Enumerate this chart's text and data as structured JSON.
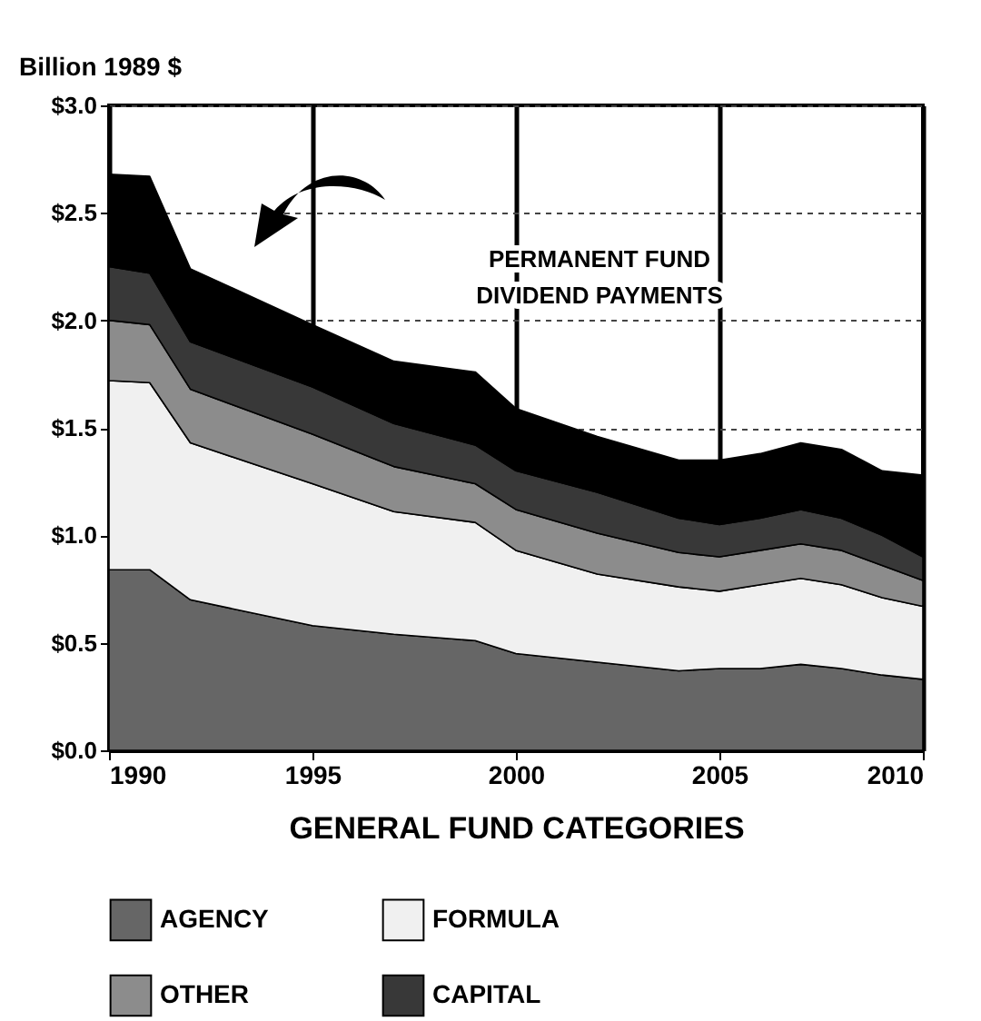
{
  "chart_data": {
    "type": "area",
    "stacked": true,
    "xlabel": "GENERAL FUND CATEGORIES",
    "ylabel": "Billion 1989 $",
    "x": [
      1990,
      1991,
      1992,
      1995,
      1997,
      1999,
      2000,
      2002,
      2004,
      2005,
      2006,
      2007,
      2008,
      2009,
      2010
    ],
    "series": [
      {
        "name": "AGENCY",
        "color": "#666666",
        "values": [
          0.84,
          0.84,
          0.7,
          0.58,
          0.54,
          0.51,
          0.45,
          0.41,
          0.37,
          0.38,
          0.38,
          0.4,
          0.38,
          0.35,
          0.33
        ]
      },
      {
        "name": "FORMULA",
        "color": "#f0f0f0",
        "values": [
          0.88,
          0.87,
          0.73,
          0.66,
          0.57,
          0.55,
          0.48,
          0.41,
          0.39,
          0.36,
          0.39,
          0.4,
          0.39,
          0.36,
          0.34
        ]
      },
      {
        "name": "OTHER",
        "color": "#8c8c8c",
        "values": [
          0.28,
          0.27,
          0.25,
          0.23,
          0.21,
          0.18,
          0.19,
          0.19,
          0.16,
          0.16,
          0.16,
          0.16,
          0.16,
          0.15,
          0.12
        ]
      },
      {
        "name": "CAPITAL",
        "color": "#383838",
        "values": [
          0.25,
          0.24,
          0.22,
          0.22,
          0.2,
          0.18,
          0.18,
          0.19,
          0.16,
          0.15,
          0.15,
          0.16,
          0.15,
          0.14,
          0.11
        ]
      },
      {
        "color": "#000000",
        "values": [
          0.43,
          0.45,
          0.34,
          0.29,
          0.29,
          0.34,
          0.29,
          0.26,
          0.27,
          0.3,
          0.3,
          0.31,
          0.32,
          0.3,
          0.38
        ]
      }
    ],
    "annotations": [
      "PERMANENT FUND\nDIVIDEND PAYMENTS"
    ],
    "xlim": [
      1990,
      2010
    ],
    "xticks": [
      1990,
      1995,
      2000,
      2005,
      2010
    ],
    "ylim": [
      0,
      3
    ],
    "yticks": [
      {
        "value": 0,
        "label": "$0.0"
      },
      {
        "value": 0.5,
        "label": "$0.5"
      },
      {
        "value": 1,
        "label": "$1.0"
      },
      {
        "value": 1.5,
        "label": "$1.5"
      },
      {
        "value": 2,
        "label": "$2.0"
      },
      {
        "value": 2.5,
        "label": "$2.5"
      },
      {
        "value": 3,
        "label": "$3.0"
      }
    ],
    "grid": true,
    "legend": "bottom"
  }
}
